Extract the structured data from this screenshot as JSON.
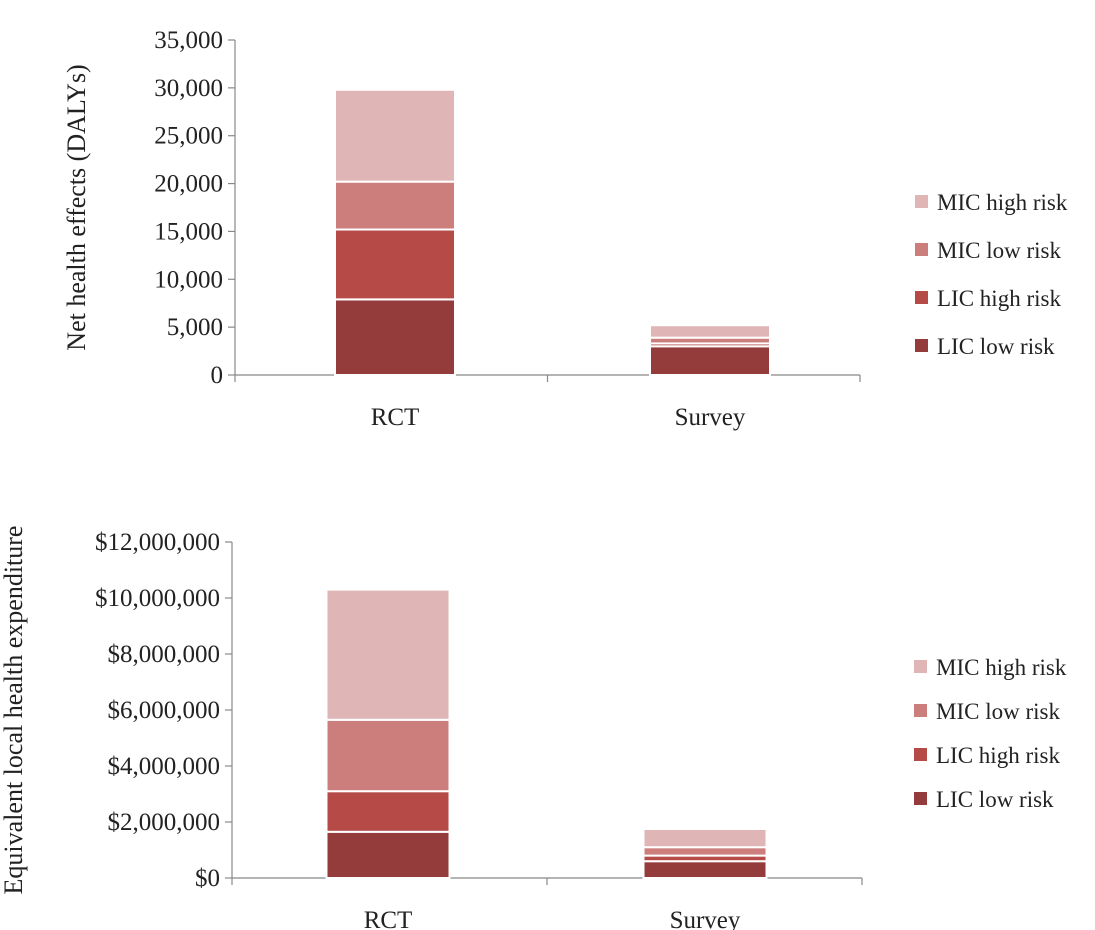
{
  "series_colors": {
    "LIC low risk": "#943B3B",
    "LIC high risk": "#B54A47",
    "MIC low risk": "#CC7E7C",
    "MIC high risk": "#DFB6B5"
  },
  "chart_data": [
    {
      "type": "bar",
      "stacked": true,
      "title": "",
      "xlabel": "",
      "ylabel": "Net health effects (DALYs)",
      "categories": [
        "RCT",
        "Survey"
      ],
      "ylim": [
        0,
        35000
      ],
      "yticks": [
        0,
        5000,
        10000,
        15000,
        20000,
        25000,
        30000,
        35000
      ],
      "ytick_labels": [
        "0",
        "5,000",
        "10,000",
        "15,000",
        "20,000",
        "25,000",
        "30,000",
        "35,000"
      ],
      "legend_position": "right",
      "grid": false,
      "series": [
        {
          "name": "LIC low risk",
          "values": [
            7900,
            3000
          ]
        },
        {
          "name": "LIC high risk",
          "values": [
            7300,
            300
          ]
        },
        {
          "name": "MIC low risk",
          "values": [
            5000,
            600
          ]
        },
        {
          "name": "MIC high risk",
          "values": [
            9600,
            1300
          ]
        }
      ]
    },
    {
      "type": "bar",
      "stacked": true,
      "title": "",
      "xlabel": "",
      "ylabel": "Equivalent local health expenditure",
      "categories": [
        "RCT",
        "Survey"
      ],
      "ylim": [
        0,
        12000000
      ],
      "yticks": [
        0,
        2000000,
        4000000,
        6000000,
        8000000,
        10000000,
        12000000
      ],
      "ytick_labels": [
        "$0",
        "$2,000,000",
        "$4,000,000",
        "$6,000,000",
        "$8,000,000",
        "$10,000,000",
        "$12,000,000"
      ],
      "legend_position": "right",
      "grid": false,
      "series": [
        {
          "name": "LIC low risk",
          "values": [
            1650000,
            600000
          ]
        },
        {
          "name": "LIC high risk",
          "values": [
            1450000,
            200000
          ]
        },
        {
          "name": "MIC low risk",
          "values": [
            2550000,
            300000
          ]
        },
        {
          "name": "MIC high risk",
          "values": [
            4650000,
            650000
          ]
        }
      ]
    }
  ]
}
